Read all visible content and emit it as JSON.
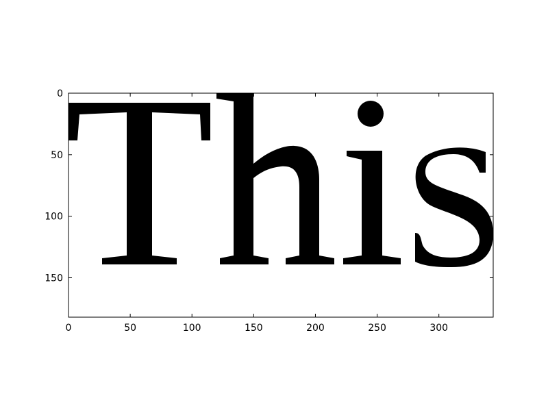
{
  "chart_data": {
    "type": "heatmap",
    "title": "",
    "xlabel": "",
    "ylabel": "",
    "image_text": "This",
    "colormap": [
      "#ffffff",
      "#000000"
    ],
    "image_shape": [
      182,
      344
    ],
    "xlim": [
      0,
      344
    ],
    "ylim": [
      182,
      0
    ],
    "x_ticks": [
      0,
      50,
      100,
      150,
      200,
      250,
      300
    ],
    "y_ticks": [
      0,
      50,
      100,
      150
    ],
    "x_tick_labels": [
      "0",
      "50",
      "100",
      "150",
      "200",
      "250",
      "300"
    ],
    "y_tick_labels": [
      "0",
      "50",
      "100",
      "150"
    ],
    "grid": false
  }
}
